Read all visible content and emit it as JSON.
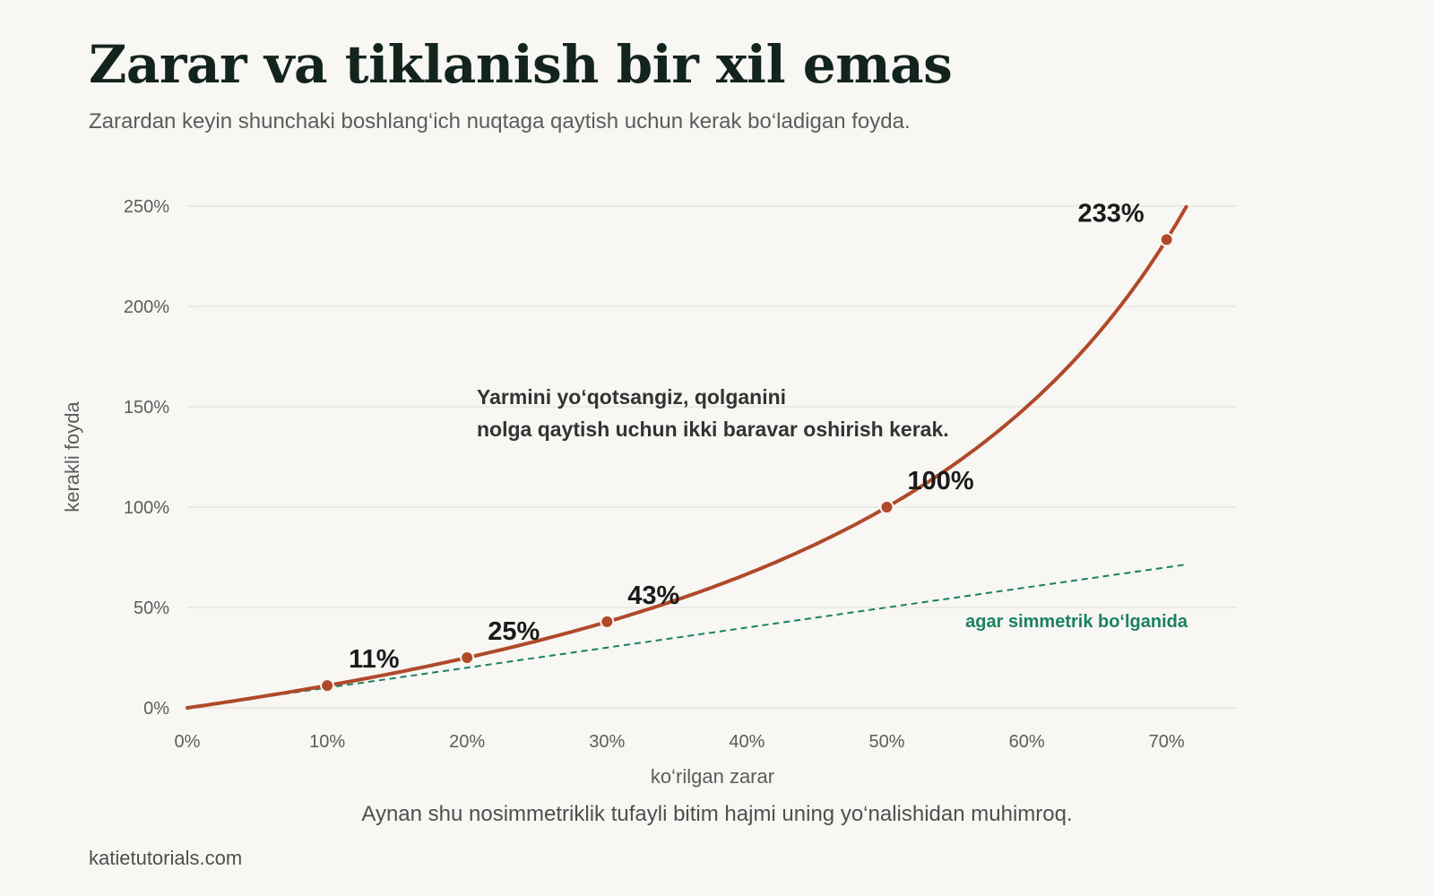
{
  "title": "Zarar va tiklanish bir xil emas",
  "subtitle": "Zarardan keyin shunchaki boshlang‘ich nuqtaga qaytish uchun kerak bo‘ladigan foyda.",
  "caption": "Aynan shu nosimmetriklik tufayli bitim hajmi uning yo‘nalishidan muhimroq.",
  "source": "katietutorials.com",
  "colors": {
    "curve": "#b0492a",
    "symmetric": "#1b8063",
    "grid": "#e6e3dd",
    "axis_text": "#5c5c5c",
    "label_text": "#1a1a1a",
    "annotation_text": "#333333"
  },
  "chart_data": {
    "type": "line",
    "xlabel": "ko‘rilgan zarar",
    "ylabel": "kerakli foyda",
    "xlim": [
      0,
      0.715
    ],
    "ylim": [
      0,
      2.5
    ],
    "x_ticks": [
      0,
      0.1,
      0.2,
      0.3,
      0.4,
      0.5,
      0.6,
      0.7
    ],
    "x_tick_labels": [
      "0%",
      "10%",
      "20%",
      "30%",
      "40%",
      "50%",
      "60%",
      "70%"
    ],
    "y_ticks": [
      0,
      0.5,
      1,
      1.5,
      2,
      2.5
    ],
    "y_tick_labels": [
      "0%",
      "50%",
      "100%",
      "150%",
      "200%",
      "250%"
    ],
    "grid": "horizontal",
    "series": [
      {
        "role": "required",
        "formula": "x / (1 - x)",
        "x": [
          0,
          0.05,
          0.1,
          0.15,
          0.2,
          0.25,
          0.3,
          0.35,
          0.4,
          0.45,
          0.5,
          0.55,
          0.6,
          0.65,
          0.7,
          0.714
        ],
        "y": [
          0,
          0.053,
          0.111,
          0.176,
          0.25,
          0.333,
          0.429,
          0.538,
          0.667,
          0.818,
          1.0,
          1.222,
          1.5,
          1.857,
          2.333,
          2.5
        ]
      },
      {
        "role": "symmetric",
        "name": "agar simmetrik bo‘lganida",
        "x": [
          0,
          0.715
        ],
        "y": [
          0,
          0.715
        ]
      }
    ],
    "highlight_points": [
      {
        "x": 0.1,
        "y": 0.111,
        "label": "11%"
      },
      {
        "x": 0.2,
        "y": 0.25,
        "label": "25%"
      },
      {
        "x": 0.3,
        "y": 0.429,
        "label": "43%"
      },
      {
        "x": 0.5,
        "y": 1.0,
        "label": "100%"
      },
      {
        "x": 0.7,
        "y": 2.333,
        "label": "233%"
      }
    ],
    "annotation": {
      "lines": [
        "Yarmini yo‘qotsangiz, qolganini",
        "nolga qaytish uchun ikki baravar oshirish kerak."
      ]
    }
  }
}
